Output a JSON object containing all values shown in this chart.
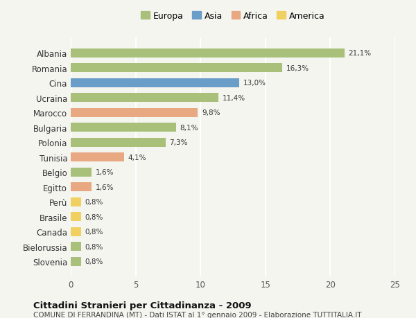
{
  "categories": [
    "Albania",
    "Romania",
    "Cina",
    "Ucraina",
    "Marocco",
    "Bulgaria",
    "Polonia",
    "Tunisia",
    "Belgio",
    "Egitto",
    "Perù",
    "Brasile",
    "Canada",
    "Bielorussia",
    "Slovenia"
  ],
  "values": [
    21.1,
    16.3,
    13.0,
    11.4,
    9.8,
    8.1,
    7.3,
    4.1,
    1.6,
    1.6,
    0.8,
    0.8,
    0.8,
    0.8,
    0.8
  ],
  "labels": [
    "21,1%",
    "16,3%",
    "13,0%",
    "11,4%",
    "9,8%",
    "8,1%",
    "7,3%",
    "4,1%",
    "1,6%",
    "1,6%",
    "0,8%",
    "0,8%",
    "0,8%",
    "0,8%",
    "0,8%"
  ],
  "continents": [
    "Europa",
    "Europa",
    "Asia",
    "Europa",
    "Africa",
    "Europa",
    "Europa",
    "Africa",
    "Europa",
    "Africa",
    "America",
    "America",
    "America",
    "Europa",
    "Europa"
  ],
  "colors": {
    "Europa": "#a8c07a",
    "Asia": "#6a9ec9",
    "Africa": "#e8a882",
    "America": "#f0d060"
  },
  "legend_labels": [
    "Europa",
    "Asia",
    "Africa",
    "America"
  ],
  "xlim": [
    0,
    25
  ],
  "xticks": [
    0,
    5,
    10,
    15,
    20,
    25
  ],
  "title": "Cittadini Stranieri per Cittadinanza - 2009",
  "subtitle": "COMUNE DI FERRANDINA (MT) - Dati ISTAT al 1° gennaio 2009 - Elaborazione TUTTITALIA.IT",
  "background_color": "#f5f5f0",
  "grid_color": "#ffffff",
  "bar_height": 0.6
}
